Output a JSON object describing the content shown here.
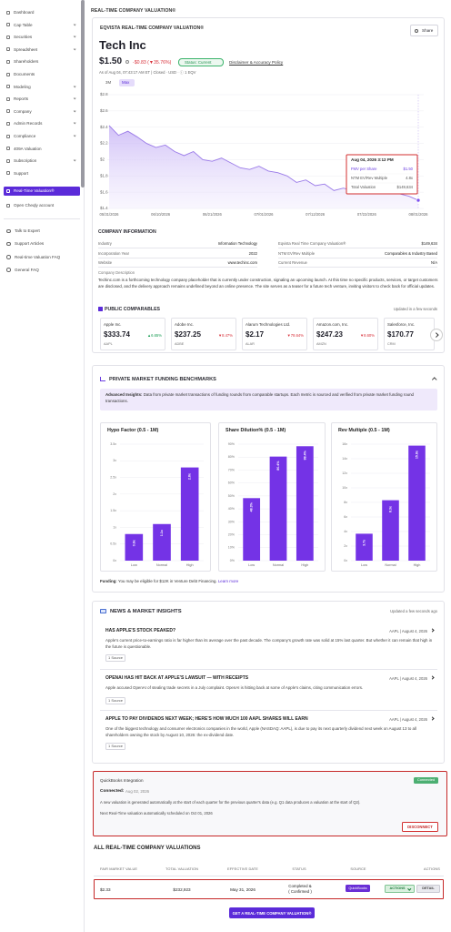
{
  "sidebar": {
    "nav": [
      "Dashboard",
      "Cap Table",
      "Securities",
      "Spreadsheet",
      "Shareholders",
      "Documents",
      "Modeling",
      "Reports",
      "Company",
      "Admin Records",
      "Compliance",
      "409A Valuation",
      "Subscription",
      "Support",
      "Real-Time Valuation®",
      "Open Cheqly account"
    ],
    "help": [
      "Talk to Expert",
      "Support Articles",
      "Real-time Valuation FAQ",
      "General FAQ"
    ]
  },
  "page_title": "REAL-TIME COMPANY VALUATION®",
  "valuation": {
    "heading": "EQVISTA REAL-TIME COMPANY VALUATION®",
    "share": "Share",
    "company": "Tech Inc",
    "price": "$1.50",
    "change": "-$0.83 (▼35.76%)",
    "status": "Status: Current",
    "disclaimer": "Disclaimer & Accuracy Policy",
    "as_of": "As of Aug 04, 07:43:17 AM ET | Closed · USD · ⓘ 1 EQV",
    "ranges": [
      "3M",
      "Max"
    ],
    "chart": {
      "type": "line",
      "values": [
        2.42,
        2.3,
        2.35,
        2.28,
        2.2,
        2.15,
        2.18,
        2.1,
        2.05,
        2.1,
        2.0,
        1.98,
        2.02,
        1.96,
        1.9,
        1.88,
        1.92,
        1.86,
        1.84,
        1.8,
        1.72,
        1.75,
        1.68,
        1.7,
        1.62,
        1.65,
        1.62,
        1.6,
        1.6,
        1.62,
        1.6,
        1.58,
        1.55,
        1.5
      ],
      "ylim": [
        1.4,
        2.8
      ],
      "yticks": [
        {
          "value": 2.8,
          "label": "$2.8"
        },
        {
          "value": 2.6,
          "label": "$2.6"
        },
        {
          "value": 2.4,
          "label": "$2.4"
        },
        {
          "value": 2.2,
          "label": "$2.2"
        },
        {
          "value": 2,
          "label": "$2"
        },
        {
          "value": 1.8,
          "label": "$1.8"
        },
        {
          "value": 1.6,
          "label": "$1.6"
        },
        {
          "value": 1.4,
          "label": "$1.4"
        }
      ],
      "xticks": [
        "05/31/2026",
        "06/10/2026",
        "06/21/2026",
        "07/01/2026",
        "07/12/2026",
        "07/22/2026",
        "08/01/2026"
      ],
      "tooltip": {
        "title": "Aug 04, 2026 3:12 PM",
        "rows": [
          [
            "FMV per Share",
            "$1.50"
          ],
          [
            "NTM EV/Rev Multiple",
            "4.8x"
          ],
          [
            "Total Valuation",
            "$149,634"
          ]
        ]
      }
    }
  },
  "company_info": {
    "title": "COMPANY INFORMATION",
    "rows": [
      [
        "Industry",
        "Information Technology",
        "Eqvista Real Time Company Valuation®",
        "$149,634"
      ],
      [
        "Incorporation Year",
        "2022",
        "NTM EV/Rev Multiple",
        "Comparables & Industry Based"
      ],
      [
        "Website",
        "www.techinc.com",
        "Current Revenue",
        "N/A"
      ]
    ],
    "description_label": "Company Description",
    "description": "Techinc.com is a forthcoming technology company placeholder that is currently under construction, signaling an upcoming launch. At this time no specific products, services, or target customers are disclosed, and the delivery approach remains undefined beyond an online presence. The site serves as a teaser for a future tech venture, inviting visitors to check back for official updates."
  },
  "comparables": {
    "title": "PUBLIC COMPARABLES",
    "updated": "Updated in a few seconds",
    "cards": [
      {
        "name": "Apple Inc.",
        "price": "$333.74",
        "change": "▲6.65%",
        "ticker": "AAPL"
      },
      {
        "name": "Adobe Inc.",
        "price": "$237.25",
        "change": "▼8.47%",
        "ticker": "ADBE"
      },
      {
        "name": "Alarum Technologies Ltd.",
        "price": "$2.17",
        "change": "▼78.64%",
        "ticker": "ALAR"
      },
      {
        "name": "Amazon.com, Inc.",
        "price": "$247.23",
        "change": "▼8.60%",
        "ticker": "AMZN"
      },
      {
        "name": "Salesforce, Inc.",
        "price": "$170.77",
        "ticker": "CRM"
      }
    ]
  },
  "benchmarks": {
    "title": "PRIVATE MARKET FUNDING BENCHMARKS",
    "insight_label": "Advanced Insights:",
    "insight": "Data from private market transactions of funding rounds from comparable startups. Each metric is sourced and verified from private market funding round transactions.",
    "charts": [
      {
        "type": "bar",
        "title": "Hypo Factor (0.5 - 1M)",
        "categories": [
          "Low",
          "Normal",
          "High"
        ],
        "values": [
          0.8,
          1.1,
          2.8
        ],
        "value_labels": [
          "0.8x",
          "1.1x",
          "2.8x"
        ],
        "ylim": [
          0,
          3.5
        ],
        "yticks": [
          {
            "value": 0,
            "label": "0x"
          },
          {
            "value": 0.5,
            "label": "0.5x"
          },
          {
            "value": 1,
            "label": "1x"
          },
          {
            "value": 1.5,
            "label": "1.5x"
          },
          {
            "value": 2,
            "label": "2x"
          },
          {
            "value": 2.5,
            "label": "2.5x"
          },
          {
            "value": 3,
            "label": "3x"
          },
          {
            "value": 3.5,
            "label": "3.5x"
          }
        ]
      },
      {
        "type": "bar",
        "title": "Share Dilution% (0.5 - 1M)",
        "categories": [
          "Low",
          "Normal",
          "High"
        ],
        "values": [
          48.3,
          80.4,
          88.4
        ],
        "value_labels": [
          "48.3%",
          "80.4%",
          "88.4%"
        ],
        "ylim": [
          0,
          90
        ],
        "yticks": [
          {
            "value": 0,
            "label": "0%"
          },
          {
            "value": 10,
            "label": "10%"
          },
          {
            "value": 20,
            "label": "20%"
          },
          {
            "value": 30,
            "label": "30%"
          },
          {
            "value": 40,
            "label": "40%"
          },
          {
            "value": 50,
            "label": "50%"
          },
          {
            "value": 60,
            "label": "60%"
          },
          {
            "value": 70,
            "label": "70%"
          },
          {
            "value": 80,
            "label": "80%"
          },
          {
            "value": 90,
            "label": "90%"
          }
        ]
      },
      {
        "type": "bar",
        "title": "Rev Multiple (0.5 - 1M)",
        "categories": [
          "Low",
          "Normal",
          "High"
        ],
        "values": [
          3.7,
          8.3,
          15.8
        ],
        "value_labels": [
          "3.7x",
          "8.3x",
          "15.8x"
        ],
        "ylim": [
          0,
          16
        ],
        "yticks": [
          {
            "value": 0,
            "label": "0x"
          },
          {
            "value": 2,
            "label": "2x"
          },
          {
            "value": 4,
            "label": "4x"
          },
          {
            "value": 6,
            "label": "6x"
          },
          {
            "value": 8,
            "label": "8x"
          },
          {
            "value": 10,
            "label": "10x"
          },
          {
            "value": 12,
            "label": "12x"
          },
          {
            "value": 14,
            "label": "14x"
          },
          {
            "value": 16,
            "label": "16x"
          }
        ]
      }
    ],
    "funding_label": "Funding:",
    "funding": "You may be eligible for $12K in Venture Debt Financing.",
    "learn_more": "Learn more"
  },
  "news": {
    "title": "NEWS & MARKET INSIGHTS",
    "updated": "Updated a few seconds ago",
    "items": [
      {
        "title": "HAS APPLE'S STOCK PEAKED?",
        "meta": "AAPL | August 4, 2026",
        "text": "Apple's current price-to-earnings ratio is far higher than its average over the past decade. The company's growth rate was solid at 15% last quarter. But whether it can remain that high in the future is questionable.",
        "source": "1 Source"
      },
      {
        "title": "OPENAI HAS HIT BACK AT APPLE'S LAWSUIT — WITH RECEIPTS",
        "meta": "AAPL | August 4, 2026",
        "text": "Apple accused OpenAI of stealing trade secrets in a July complaint. OpenAI is hitting back at some of Apple's claims, citing communication errors.",
        "source": "1 Source"
      },
      {
        "title": "APPLE TO PAY DIVIDENDS NEXT WEEK; HERE'S HOW MUCH 100 AAPL SHARES WILL EARN",
        "meta": "AAPL | August 4, 2026",
        "text": "One of the biggest technology and consumer electronics companies in the world, Apple (NASDAQ: AAPL), is due to pay its next quarterly dividend next week on August 13 to all shareholders owning the stock by August 10, 2026: the ex-dividend date.",
        "source": "1 Source"
      }
    ]
  },
  "quickbooks": {
    "title": "QuickBooks Integration",
    "badge": "Connected",
    "connected_label": "Connected:",
    "connected_date": "Aug 02, 2026",
    "text": "A new valuation is generated automatically at the start of each quarter for the previous quarter's data (e.g. Q1 data produces a valuation at the start of Q2).",
    "next": "Next Real-Time valuation automatically scheduled on Oct 01, 2026",
    "button": "DISCONNECT"
  },
  "valuations_table": {
    "title": "ALL REAL-TIME COMPANY VALUATIONS",
    "headers": [
      "FAIR MARKET VALUE",
      "TOTAL VALUATION",
      "EFFECTIVE DATE",
      "STATUS",
      "SOURCE",
      "ACTIONS"
    ],
    "rows": [
      [
        "$2.33",
        "$232,923",
        "May 31, 2026",
        [
          "Completed &",
          "( Confirmed )"
        ],
        "QuickBooks",
        "ACTIONS",
        "DETAIL"
      ]
    ]
  },
  "cta": "GET A REAL-TIME COMPANY VALUATION®"
}
